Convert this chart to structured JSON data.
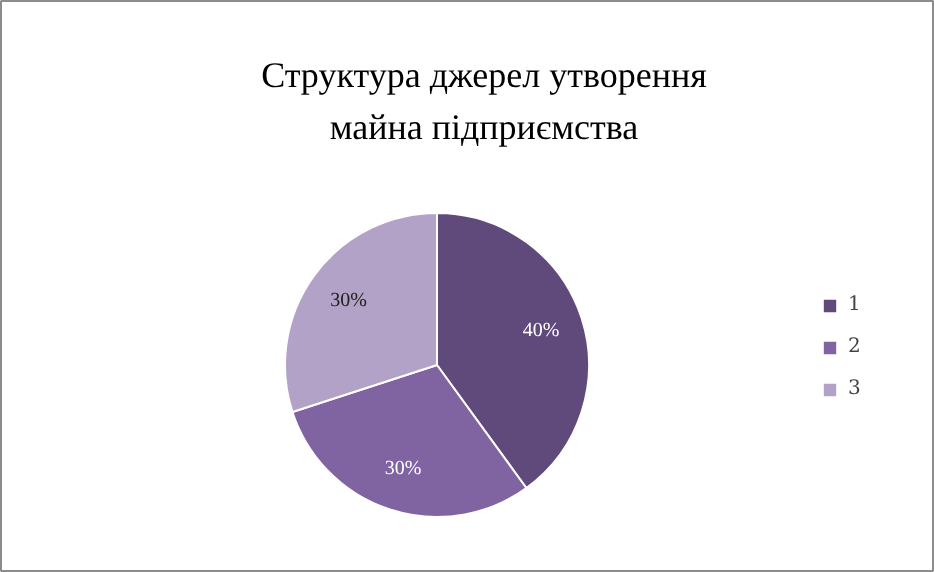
{
  "chart_data": {
    "type": "pie",
    "title": "Структура джерел утворення\nмайна підприємства",
    "categories": [
      "1",
      "2",
      "3"
    ],
    "values": [
      40,
      30,
      30
    ],
    "colors": [
      "#604a7b",
      "#8064a2",
      "#b3a2c7"
    ],
    "value_labels": [
      "40%",
      "30%",
      "30%"
    ],
    "legend": "right"
  }
}
